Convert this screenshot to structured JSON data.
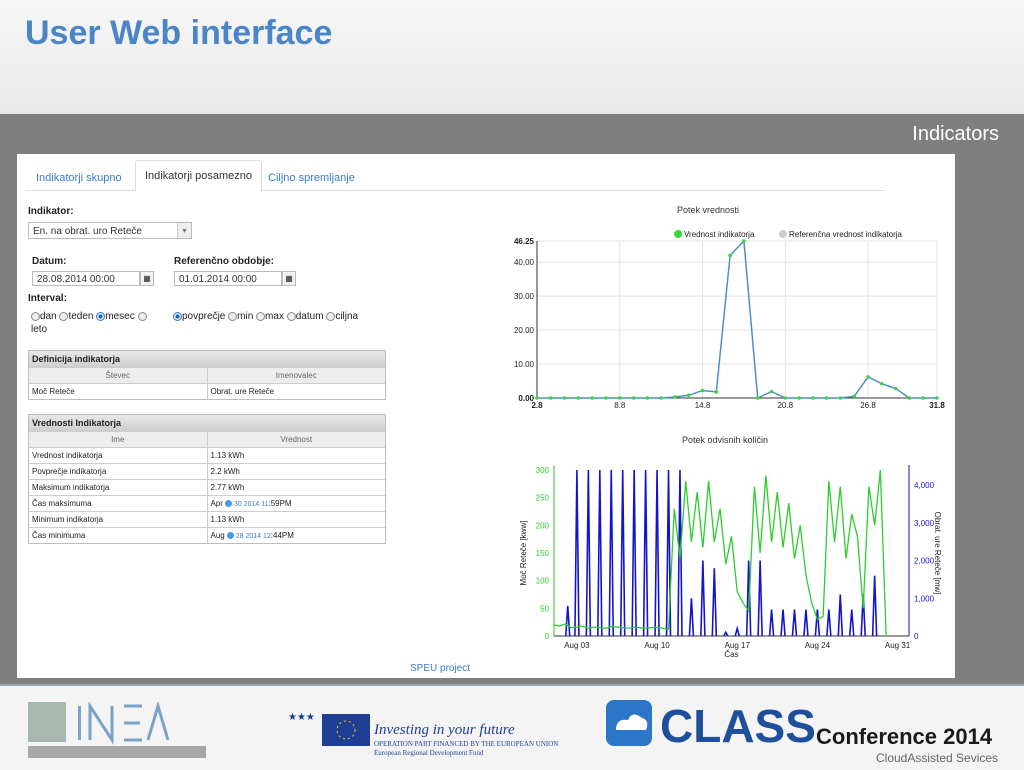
{
  "slide": {
    "title": "User Web interface",
    "section": "Indicators"
  },
  "app": {
    "tabs": [
      "Indikatorji skupno",
      "Indikatorji posamezno",
      "Ciljno spremljanje"
    ],
    "indikator_label": "Indikator:",
    "indikator_value": "En. na obrat. uro Reteče",
    "datum_label": "Datum:",
    "datum_value": "28.08.2014 00:00",
    "ref_label": "Referenčno obdobje:",
    "ref_value": "01.01.2014 00:00",
    "interval_label": "Interval:",
    "interval_options": [
      "dan",
      "teden",
      "mesec",
      "leto"
    ],
    "interval_selected": "mesec",
    "stat_options": [
      "povprečje",
      "min",
      "max",
      "datum",
      "ciljna"
    ],
    "stat_selected": "povprečje",
    "def_panel": {
      "title": "Definicija indikatorja",
      "headers": [
        "Števec",
        "Imenovalec"
      ],
      "rows": [
        [
          "Moč Reteče",
          "Obrat. ure Reteče"
        ]
      ]
    },
    "val_panel": {
      "title": "Vrednosti Indikatorja",
      "headers": [
        "Ime",
        "Vrednost"
      ],
      "rows": [
        [
          "Vrednost indikatorja",
          "1.13 kWh"
        ],
        [
          "Povprečje indikatorja",
          "2.2 kWh"
        ],
        [
          "Maksimum indikatorja",
          "2.77 kWh"
        ],
        [
          "Čas maksimuma",
          "Apr",
          "30 2014 11",
          ":59PM"
        ],
        [
          "Minimum indikatorja",
          "1.13 kWh"
        ],
        [
          "Čas minimuma",
          "Aug",
          "28 2014 12",
          ":44PM"
        ]
      ]
    },
    "footer": "SPEU project"
  },
  "chart_data": [
    {
      "type": "line",
      "title": "Potek vrednosti",
      "x": [
        2.8,
        3.8,
        4.8,
        5.8,
        6.8,
        7.8,
        8.8,
        9.8,
        10.8,
        11.8,
        12.8,
        13.8,
        14.8,
        15.8,
        16.8,
        17.8,
        18.8,
        19.8,
        20.8,
        21.8,
        22.8,
        23.8,
        24.8,
        25.8,
        26.8,
        27.8,
        28.8,
        29.8,
        30.8,
        31.8
      ],
      "series": [
        {
          "name": "Vrednost indikatorja",
          "color": "#3cd43c",
          "line_color": "#4e8fc9",
          "values": [
            0,
            0,
            0,
            0,
            0,
            0,
            0,
            0,
            0,
            0,
            0.3,
            0.8,
            2.2,
            1.8,
            42,
            46.25,
            0,
            1.9,
            0,
            0,
            0,
            0,
            0,
            0.5,
            6.2,
            4.2,
            2.8,
            0,
            0,
            0
          ]
        },
        {
          "name": "Referenčna vrednost indikatorja",
          "color": "#cccccc"
        }
      ],
      "xticks": [
        "2.8",
        "8.8",
        "14.8",
        "20.8",
        "26.8",
        "31.8"
      ],
      "yticks": [
        "0.00",
        "10.00",
        "20.00",
        "30.00",
        "40.00",
        "46.25"
      ],
      "ylim": [
        0,
        46.25
      ]
    },
    {
      "type": "line",
      "title": "Potek odvisnih količin",
      "series": [
        {
          "name": "Moč Reteče [kww]",
          "color": "#2ecc2e",
          "axis": "left"
        },
        {
          "name": "Obrat. ure Reteče [mw]",
          "color": "#1414c8",
          "axis": "right"
        }
      ],
      "xticks": [
        "Aug 03",
        "Aug 10",
        "Aug 17",
        "Aug 24",
        "Aug 31"
      ],
      "xlabel": "Čas",
      "ylabel": "Moč Reteče [kww]",
      "ylabel_right": "Obrat. ure Reteče [mw]",
      "yticks_left": [
        "0",
        "50",
        "100",
        "150",
        "200",
        "250",
        "300"
      ],
      "yticks_right": [
        "0",
        "1,000",
        "2,000",
        "3,000",
        "4,000"
      ],
      "ylim_left": [
        0,
        300
      ],
      "ylim_right": [
        0,
        4400
      ],
      "x_range": [
        0,
        31
      ],
      "green_x": [
        0,
        0.5,
        1,
        1.5,
        2,
        2.5,
        3,
        3.5,
        4,
        4.5,
        5,
        5.5,
        6,
        6.5,
        7,
        7.5,
        8,
        8.5,
        9,
        9.5,
        10,
        10.5,
        11,
        11.5,
        12,
        12.5,
        13,
        13.5,
        14,
        14.5,
        15,
        15.5,
        16,
        16.5,
        17,
        17.5,
        18,
        18.5,
        19,
        19.5,
        20,
        20.5,
        21,
        21.5,
        22,
        22.5,
        23,
        23.5,
        24,
        24.5,
        25,
        25.5,
        26,
        26.5,
        27,
        27.5,
        28,
        28.5,
        29
      ],
      "green_values": [
        20,
        18,
        22,
        15,
        16,
        18,
        14,
        16,
        15,
        14,
        17,
        16,
        15,
        14,
        16,
        15,
        14,
        15,
        16,
        14,
        12,
        230,
        140,
        280,
        170,
        260,
        160,
        280,
        170,
        230,
        130,
        180,
        80,
        60,
        45,
        270,
        150,
        290,
        170,
        260,
        160,
        240,
        140,
        200,
        110,
        60,
        30,
        35,
        280,
        170,
        270,
        140,
        220,
        180,
        50,
        270,
        200,
        300,
        0
      ],
      "blue_x": [
        1.2,
        2,
        3,
        4,
        5,
        6,
        7,
        8,
        9,
        10,
        11,
        12,
        13,
        14,
        15,
        16,
        17,
        18,
        19,
        20,
        21,
        22,
        23,
        24,
        25,
        26,
        27,
        28
      ],
      "blue_values": [
        800,
        4400,
        4400,
        4400,
        4400,
        4400,
        4400,
        4400,
        4400,
        4400,
        4400,
        1000,
        2000,
        1800,
        100,
        200,
        2000,
        2000,
        700,
        700,
        700,
        700,
        700,
        700,
        1100,
        700,
        1100,
        1600
      ]
    }
  ]
}
